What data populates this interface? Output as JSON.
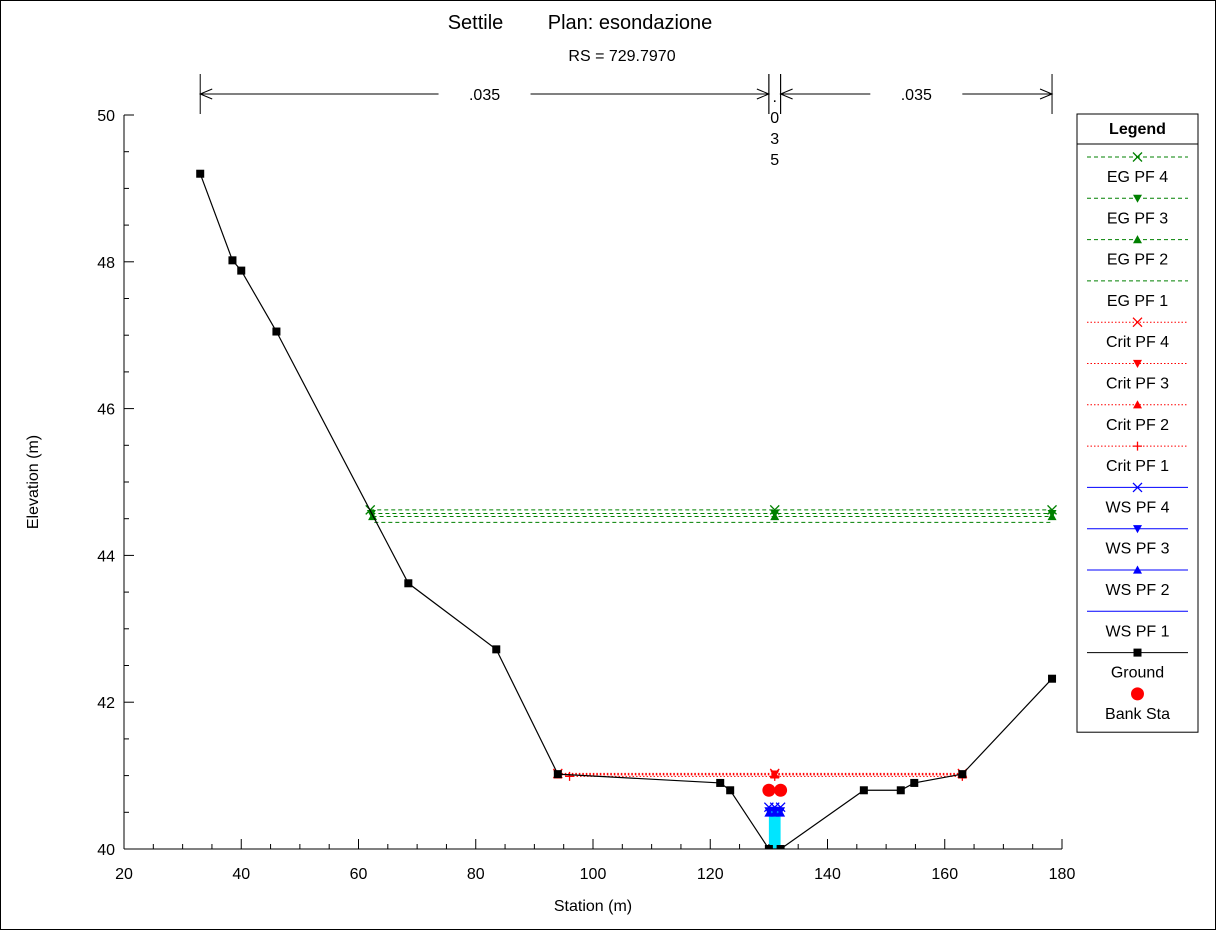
{
  "chart_data": {
    "type": "line",
    "title": "Settile        Plan: esondazione",
    "subtitle": "RS = 729.7970",
    "xlabel": "Station (m)",
    "ylabel": "Elevation (m)",
    "xlim": [
      20,
      180
    ],
    "ylim": [
      40,
      50
    ],
    "x_ticks": [
      20,
      40,
      60,
      80,
      100,
      120,
      140,
      160,
      180
    ],
    "y_ticks": [
      40,
      42,
      44,
      46,
      48,
      50
    ],
    "x_minor_step": 5,
    "y_minor_step": 0.5,
    "manning": [
      {
        "label": ".035",
        "from": 33,
        "to": 130
      },
      {
        "label": ".035",
        "from": 130,
        "to": 132,
        "vertical": true
      },
      {
        "label": ".035",
        "from": 132,
        "to": 178.3
      }
    ],
    "ground": {
      "name": "Ground",
      "x": [
        33,
        38.5,
        40,
        46,
        68.5,
        83.5,
        94,
        121.7,
        123.4,
        130,
        132,
        146.2,
        152.5,
        154.8,
        163,
        178.3
      ],
      "y": [
        49.2,
        48.02,
        47.88,
        47.05,
        43.62,
        42.72,
        41.02,
        40.9,
        40.8,
        40.0,
        40.0,
        40.8,
        40.8,
        40.9,
        41.02,
        42.32
      ]
    },
    "bank_stations": {
      "name": "Bank Sta",
      "x": [
        130,
        132
      ],
      "y": [
        40.8,
        40.8
      ]
    },
    "water_fill": {
      "x": [
        130,
        132
      ],
      "y_bottom": 40.0,
      "y_top": 40.55,
      "color": "#00e5ff"
    },
    "series": [
      {
        "name": "EG PF 4",
        "color": "#008000",
        "style": "dashed",
        "marker": "x",
        "x": [
          62,
          131,
          178.3
        ],
        "y": [
          44.62,
          44.62,
          44.62
        ]
      },
      {
        "name": "EG PF 3",
        "color": "#008000",
        "style": "dashed",
        "marker": "tri-down",
        "x": [
          62.2,
          131,
          178.3
        ],
        "y": [
          44.57,
          44.57,
          44.57
        ]
      },
      {
        "name": "EG PF 2",
        "color": "#008000",
        "style": "dashed",
        "marker": "tri-up",
        "x": [
          62.4,
          131,
          178.3
        ],
        "y": [
          44.53,
          44.53,
          44.53
        ]
      },
      {
        "name": "EG PF 1",
        "color": "#008000",
        "style": "dashed",
        "marker": "none",
        "x": [
          62.7,
          131,
          178.3
        ],
        "y": [
          44.45,
          44.45,
          44.45
        ]
      },
      {
        "name": "Crit PF 4",
        "color": "#ff0000",
        "style": "dotted",
        "marker": "x",
        "x": [
          94,
          131,
          163
        ],
        "y": [
          41.03,
          41.03,
          41.03
        ]
      },
      {
        "name": "Crit PF 3",
        "color": "#ff0000",
        "style": "dotted",
        "marker": "tri-down",
        "x": [
          94,
          131,
          163
        ],
        "y": [
          41.02,
          41.02,
          41.02
        ]
      },
      {
        "name": "Crit PF 2",
        "color": "#ff0000",
        "style": "dotted",
        "marker": "tri-up",
        "x": [
          94,
          131,
          163
        ],
        "y": [
          41.01,
          41.01,
          41.01
        ]
      },
      {
        "name": "Crit PF 1",
        "color": "#ff0000",
        "style": "dotted",
        "marker": "plus",
        "x": [
          96,
          131,
          163
        ],
        "y": [
          40.99,
          40.99,
          40.99
        ]
      },
      {
        "name": "WS PF 4",
        "color": "#0000ff",
        "style": "solid",
        "marker": "x",
        "x": [
          130,
          131,
          132
        ],
        "y": [
          40.57,
          40.57,
          40.57
        ]
      },
      {
        "name": "WS PF 3",
        "color": "#0000ff",
        "style": "solid",
        "marker": "tri-down",
        "x": [
          130,
          131,
          132
        ],
        "y": [
          40.52,
          40.52,
          40.52
        ]
      },
      {
        "name": "WS PF 2",
        "color": "#0000ff",
        "style": "solid",
        "marker": "tri-up",
        "x": [
          130,
          131,
          132
        ],
        "y": [
          40.49,
          40.49,
          40.49
        ]
      },
      {
        "name": "WS PF 1",
        "color": "#0000ff",
        "style": "solid",
        "marker": "none",
        "x": [
          130,
          131,
          132
        ],
        "y": [
          40.46,
          40.46,
          40.46
        ]
      }
    ],
    "legend": {
      "title": "Legend",
      "position": "right",
      "entries": [
        {
          "label": "EG PF 4",
          "color": "#008000",
          "style": "dashed",
          "marker": "x"
        },
        {
          "label": "EG PF 3",
          "color": "#008000",
          "style": "dashed",
          "marker": "tri-down"
        },
        {
          "label": "EG PF 2",
          "color": "#008000",
          "style": "dashed",
          "marker": "tri-up"
        },
        {
          "label": "EG PF 1",
          "color": "#008000",
          "style": "dashed",
          "marker": "none"
        },
        {
          "label": "Crit PF 4",
          "color": "#ff0000",
          "style": "dotted",
          "marker": "x"
        },
        {
          "label": "Crit PF 3",
          "color": "#ff0000",
          "style": "dotted",
          "marker": "tri-down"
        },
        {
          "label": "Crit PF 2",
          "color": "#ff0000",
          "style": "dotted",
          "marker": "tri-up"
        },
        {
          "label": "Crit PF 1",
          "color": "#ff0000",
          "style": "dotted",
          "marker": "plus"
        },
        {
          "label": "WS PF 4",
          "color": "#0000ff",
          "style": "solid",
          "marker": "x"
        },
        {
          "label": "WS PF 3",
          "color": "#0000ff",
          "style": "solid",
          "marker": "tri-down"
        },
        {
          "label": "WS PF 2",
          "color": "#0000ff",
          "style": "solid",
          "marker": "tri-up"
        },
        {
          "label": "WS PF 1",
          "color": "#0000ff",
          "style": "solid",
          "marker": "none"
        },
        {
          "label": "Ground",
          "color": "#000000",
          "style": "solid",
          "marker": "square"
        },
        {
          "label": "Bank Sta",
          "color": "#ff0000",
          "style": "none",
          "marker": "circle"
        }
      ]
    }
  }
}
